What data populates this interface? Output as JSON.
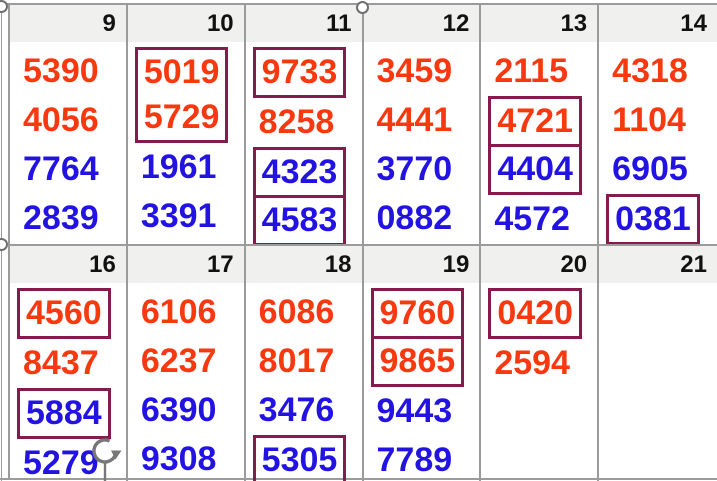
{
  "colors": {
    "red": "#f8380f",
    "blue": "#2213e2",
    "box_border": "#851a4d",
    "grid_line": "#9b9b9b",
    "header_bg": "#f0f0ee",
    "header_text": "#121212",
    "handle_stroke": "#6f6f6f",
    "rotate_icon": "#777777"
  },
  "icons": {
    "rotate": "rotate-handle-icon",
    "handles": [
      "selection-handle-top-left",
      "selection-handle-top-middle",
      "selection-handle-left-middle"
    ]
  },
  "calendar": {
    "weeks": [
      {
        "cells": [
          {
            "day": "9",
            "values": [
              {
                "text": "5390",
                "color": "red"
              },
              {
                "text": "4056",
                "color": "red"
              },
              {
                "text": "7764",
                "color": "blue"
              },
              {
                "text": "2839",
                "color": "blue"
              }
            ],
            "boxes": []
          },
          {
            "day": "10",
            "values": [
              {
                "text": "5019",
                "color": "red"
              },
              {
                "text": "5729",
                "color": "red"
              },
              {
                "text": "1961",
                "color": "blue"
              },
              {
                "text": "3391",
                "color": "blue"
              }
            ],
            "boxes": [
              [
                0,
                1
              ]
            ]
          },
          {
            "day": "11",
            "values": [
              {
                "text": "9733",
                "color": "red"
              },
              {
                "text": "8258",
                "color": "red"
              },
              {
                "text": "4323",
                "color": "blue"
              },
              {
                "text": "4583",
                "color": "blue"
              }
            ],
            "boxes": [
              [
                0,
                0
              ],
              [
                2,
                2
              ],
              [
                3,
                3
              ]
            ]
          },
          {
            "day": "12",
            "values": [
              {
                "text": "3459",
                "color": "red"
              },
              {
                "text": "4441",
                "color": "red"
              },
              {
                "text": "3770",
                "color": "blue"
              },
              {
                "text": "0882",
                "color": "blue"
              }
            ],
            "boxes": []
          },
          {
            "day": "13",
            "values": [
              {
                "text": "2115",
                "color": "red"
              },
              {
                "text": "4721",
                "color": "red"
              },
              {
                "text": "4404",
                "color": "blue"
              },
              {
                "text": "4572",
                "color": "blue"
              }
            ],
            "boxes": [
              [
                1,
                1
              ],
              [
                2,
                2
              ]
            ]
          },
          {
            "day": "14",
            "values": [
              {
                "text": "4318",
                "color": "red"
              },
              {
                "text": "1104",
                "color": "red"
              },
              {
                "text": "6905",
                "color": "blue"
              },
              {
                "text": "0381",
                "color": "blue"
              }
            ],
            "boxes": [
              [
                3,
                3
              ]
            ]
          }
        ]
      },
      {
        "cells": [
          {
            "day": "16",
            "values": [
              {
                "text": "4560",
                "color": "red"
              },
              {
                "text": "8437",
                "color": "red"
              },
              {
                "text": "5884",
                "color": "blue"
              },
              {
                "text": "5279",
                "color": "blue"
              }
            ],
            "boxes": [
              [
                0,
                0
              ],
              [
                2,
                2
              ]
            ]
          },
          {
            "day": "17",
            "values": [
              {
                "text": "6106",
                "color": "red"
              },
              {
                "text": "6237",
                "color": "red"
              },
              {
                "text": "6390",
                "color": "blue"
              },
              {
                "text": "9308",
                "color": "blue"
              }
            ],
            "boxes": []
          },
          {
            "day": "18",
            "values": [
              {
                "text": "6086",
                "color": "red"
              },
              {
                "text": "8017",
                "color": "red"
              },
              {
                "text": "3476",
                "color": "blue"
              },
              {
                "text": "5305",
                "color": "blue"
              }
            ],
            "boxes": [
              [
                3,
                3
              ]
            ]
          },
          {
            "day": "19",
            "values": [
              {
                "text": "9760",
                "color": "red"
              },
              {
                "text": "9865",
                "color": "red"
              },
              {
                "text": "9443",
                "color": "blue"
              },
              {
                "text": "7789",
                "color": "blue"
              }
            ],
            "boxes": [
              [
                0,
                0
              ],
              [
                1,
                1
              ]
            ]
          },
          {
            "day": "20",
            "values": [
              {
                "text": "0420",
                "color": "red"
              },
              {
                "text": "2594",
                "color": "red"
              }
            ],
            "boxes": [
              [
                0,
                0
              ]
            ]
          },
          {
            "day": "21",
            "values": [],
            "boxes": []
          }
        ]
      }
    ]
  }
}
